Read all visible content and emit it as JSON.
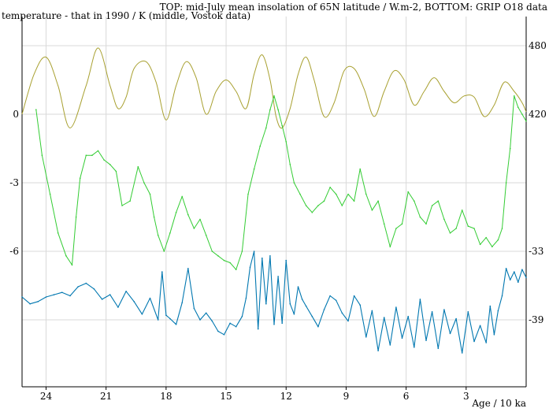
{
  "chart_data": {
    "type": "line",
    "title": "TOP: mid-July mean insolation of 65N latitude / W.m-2, BOTTOM: GRIP O18 data",
    "left_axis_label": "temperature - that in 1990 / K (middle, Vostok data)",
    "xlabel": "Age / 10 ka",
    "x_reversed": true,
    "xlim": [
      25.2,
      0
    ],
    "x_ticks": [
      24,
      21,
      18,
      15,
      12,
      9,
      6,
      3
    ],
    "left_ticks": [
      0,
      -3,
      -6
    ],
    "right_ticks_top": [
      480,
      420
    ],
    "right_ticks_bottom": [
      -33,
      -39
    ],
    "grid": true,
    "colors": {
      "insolation": "#a8a030",
      "vostok": "#33cc33",
      "grip": "#0077b0",
      "grid": "#d9d9d9",
      "axis": "#000000"
    },
    "series": [
      {
        "key": "insolation",
        "x": [
          25.2,
          24.6,
          24.0,
          23.4,
          22.8,
          22.0,
          21.4,
          20.8,
          20.4,
          20.0,
          19.6,
          19.0,
          18.5,
          18.0,
          17.5,
          17.0,
          16.5,
          16.0,
          15.5,
          15.0,
          14.5,
          14.0,
          13.6,
          13.2,
          12.8,
          12.5,
          12.2,
          11.8,
          11.4,
          11.0,
          10.6,
          10.1,
          9.6,
          9.1,
          8.6,
          8.1,
          7.6,
          7.1,
          6.6,
          6.1,
          5.6,
          5.1,
          4.6,
          4.1,
          3.6,
          3.1,
          2.6,
          2.1,
          1.6,
          1.1,
          0.6,
          0.2,
          0.0
        ],
        "y": [
          420,
          455,
          470,
          445,
          408,
          445,
          478,
          445,
          425,
          435,
          460,
          466,
          448,
          415,
          445,
          466,
          452,
          420,
          440,
          450,
          440,
          425,
          455,
          472,
          450,
          418,
          408,
          425,
          455,
          470,
          450,
          418,
          430,
          458,
          460,
          442,
          418,
          440,
          458,
          450,
          428,
          440,
          452,
          440,
          430,
          436,
          435,
          418,
          428,
          448,
          440,
          430,
          422
        ]
      },
      {
        "key": "vostok",
        "x": [
          24.5,
          24.2,
          23.8,
          23.4,
          23.0,
          22.7,
          22.5,
          22.3,
          22.0,
          21.7,
          21.4,
          21.1,
          20.8,
          20.5,
          20.2,
          19.8,
          19.4,
          19.1,
          18.8,
          18.6,
          18.4,
          18.1,
          17.8,
          17.5,
          17.2,
          16.9,
          16.6,
          16.3,
          16.0,
          15.7,
          15.4,
          15.1,
          14.8,
          14.5,
          14.2,
          13.9,
          13.6,
          13.3,
          13.0,
          12.8,
          12.6,
          12.4,
          12.2,
          12.0,
          11.8,
          11.6,
          11.3,
          11.0,
          10.7,
          10.4,
          10.1,
          9.8,
          9.5,
          9.2,
          8.9,
          8.6,
          8.3,
          8.0,
          7.7,
          7.4,
          7.1,
          6.8,
          6.5,
          6.2,
          5.9,
          5.6,
          5.3,
          5.0,
          4.7,
          4.4,
          4.1,
          3.8,
          3.5,
          3.2,
          2.9,
          2.6,
          2.3,
          2.0,
          1.7,
          1.4,
          1.2,
          1.0,
          0.8,
          0.6,
          0.4,
          0.2,
          0.0
        ],
        "y": [
          0.2,
          -1.8,
          -3.5,
          -5.2,
          -6.2,
          -6.6,
          -4.5,
          -2.8,
          -1.8,
          -1.8,
          -1.6,
          -2.0,
          -2.2,
          -2.5,
          -4.0,
          -3.8,
          -2.3,
          -3.0,
          -3.5,
          -4.5,
          -5.3,
          -6.0,
          -5.2,
          -4.3,
          -3.6,
          -4.4,
          -5.0,
          -4.6,
          -5.3,
          -6.0,
          -6.2,
          -6.4,
          -6.5,
          -6.8,
          -6.0,
          -3.5,
          -2.4,
          -1.4,
          -0.6,
          0.2,
          0.8,
          0.2,
          -0.5,
          -1.2,
          -2.2,
          -3.0,
          -3.5,
          -4.0,
          -4.3,
          -4.0,
          -3.8,
          -3.2,
          -3.5,
          -4.0,
          -3.5,
          -3.8,
          -2.4,
          -3.5,
          -4.2,
          -3.8,
          -4.8,
          -5.8,
          -5.0,
          -4.8,
          -3.4,
          -3.8,
          -4.5,
          -4.8,
          -4.0,
          -3.8,
          -4.6,
          -5.2,
          -5.0,
          -4.2,
          -4.9,
          -5.0,
          -5.7,
          -5.4,
          -5.8,
          -5.5,
          -5.0,
          -3.0,
          -1.5,
          0.8,
          0.3,
          0.0,
          -0.3
        ]
      },
      {
        "key": "grip",
        "x": [
          25.2,
          24.8,
          24.4,
          24.0,
          23.6,
          23.2,
          22.8,
          22.4,
          22.0,
          21.6,
          21.2,
          20.8,
          20.4,
          20.0,
          19.6,
          19.2,
          18.8,
          18.4,
          18.2,
          18.0,
          17.8,
          17.5,
          17.2,
          16.9,
          16.6,
          16.3,
          16.0,
          15.7,
          15.4,
          15.1,
          14.8,
          14.5,
          14.2,
          14.0,
          13.8,
          13.6,
          13.4,
          13.2,
          13.0,
          12.8,
          12.6,
          12.4,
          12.2,
          12.0,
          11.8,
          11.6,
          11.4,
          11.2,
          11.0,
          10.7,
          10.4,
          10.1,
          9.8,
          9.5,
          9.2,
          8.9,
          8.6,
          8.3,
          8.0,
          7.7,
          7.4,
          7.1,
          6.8,
          6.5,
          6.2,
          5.9,
          5.6,
          5.3,
          5.0,
          4.7,
          4.4,
          4.1,
          3.8,
          3.5,
          3.2,
          2.9,
          2.6,
          2.3,
          2.0,
          1.8,
          1.6,
          1.4,
          1.2,
          1.0,
          0.8,
          0.6,
          0.4,
          0.2,
          0.0
        ],
        "y": [
          -37.0,
          -37.6,
          -37.4,
          -37.0,
          -36.8,
          -36.6,
          -36.9,
          -36.1,
          -35.8,
          -36.3,
          -37.2,
          -36.8,
          -37.9,
          -36.5,
          -37.4,
          -38.5,
          -37.1,
          -39.0,
          -34.8,
          -38.6,
          -38.9,
          -39.4,
          -37.5,
          -34.5,
          -38.0,
          -39.0,
          -38.4,
          -39.1,
          -40.0,
          -40.3,
          -39.3,
          -39.6,
          -38.7,
          -37.1,
          -34.4,
          -33.0,
          -39.8,
          -33.6,
          -37.6,
          -33.4,
          -39.4,
          -35.2,
          -39.3,
          -33.8,
          -37.6,
          -38.5,
          -36.1,
          -37.2,
          -37.8,
          -38.7,
          -39.6,
          -38.1,
          -36.9,
          -37.3,
          -38.4,
          -39.1,
          -36.9,
          -37.7,
          -40.5,
          -38.2,
          -41.7,
          -38.8,
          -41.2,
          -37.9,
          -40.6,
          -38.7,
          -41.4,
          -37.2,
          -40.8,
          -38.3,
          -41.5,
          -38.1,
          -40.2,
          -38.9,
          -41.9,
          -38.3,
          -40.9,
          -39.5,
          -41.0,
          -37.8,
          -40.3,
          -38.2,
          -36.9,
          -34.5,
          -35.5,
          -34.8,
          -35.7,
          -34.6,
          -35.3
        ]
      }
    ]
  }
}
